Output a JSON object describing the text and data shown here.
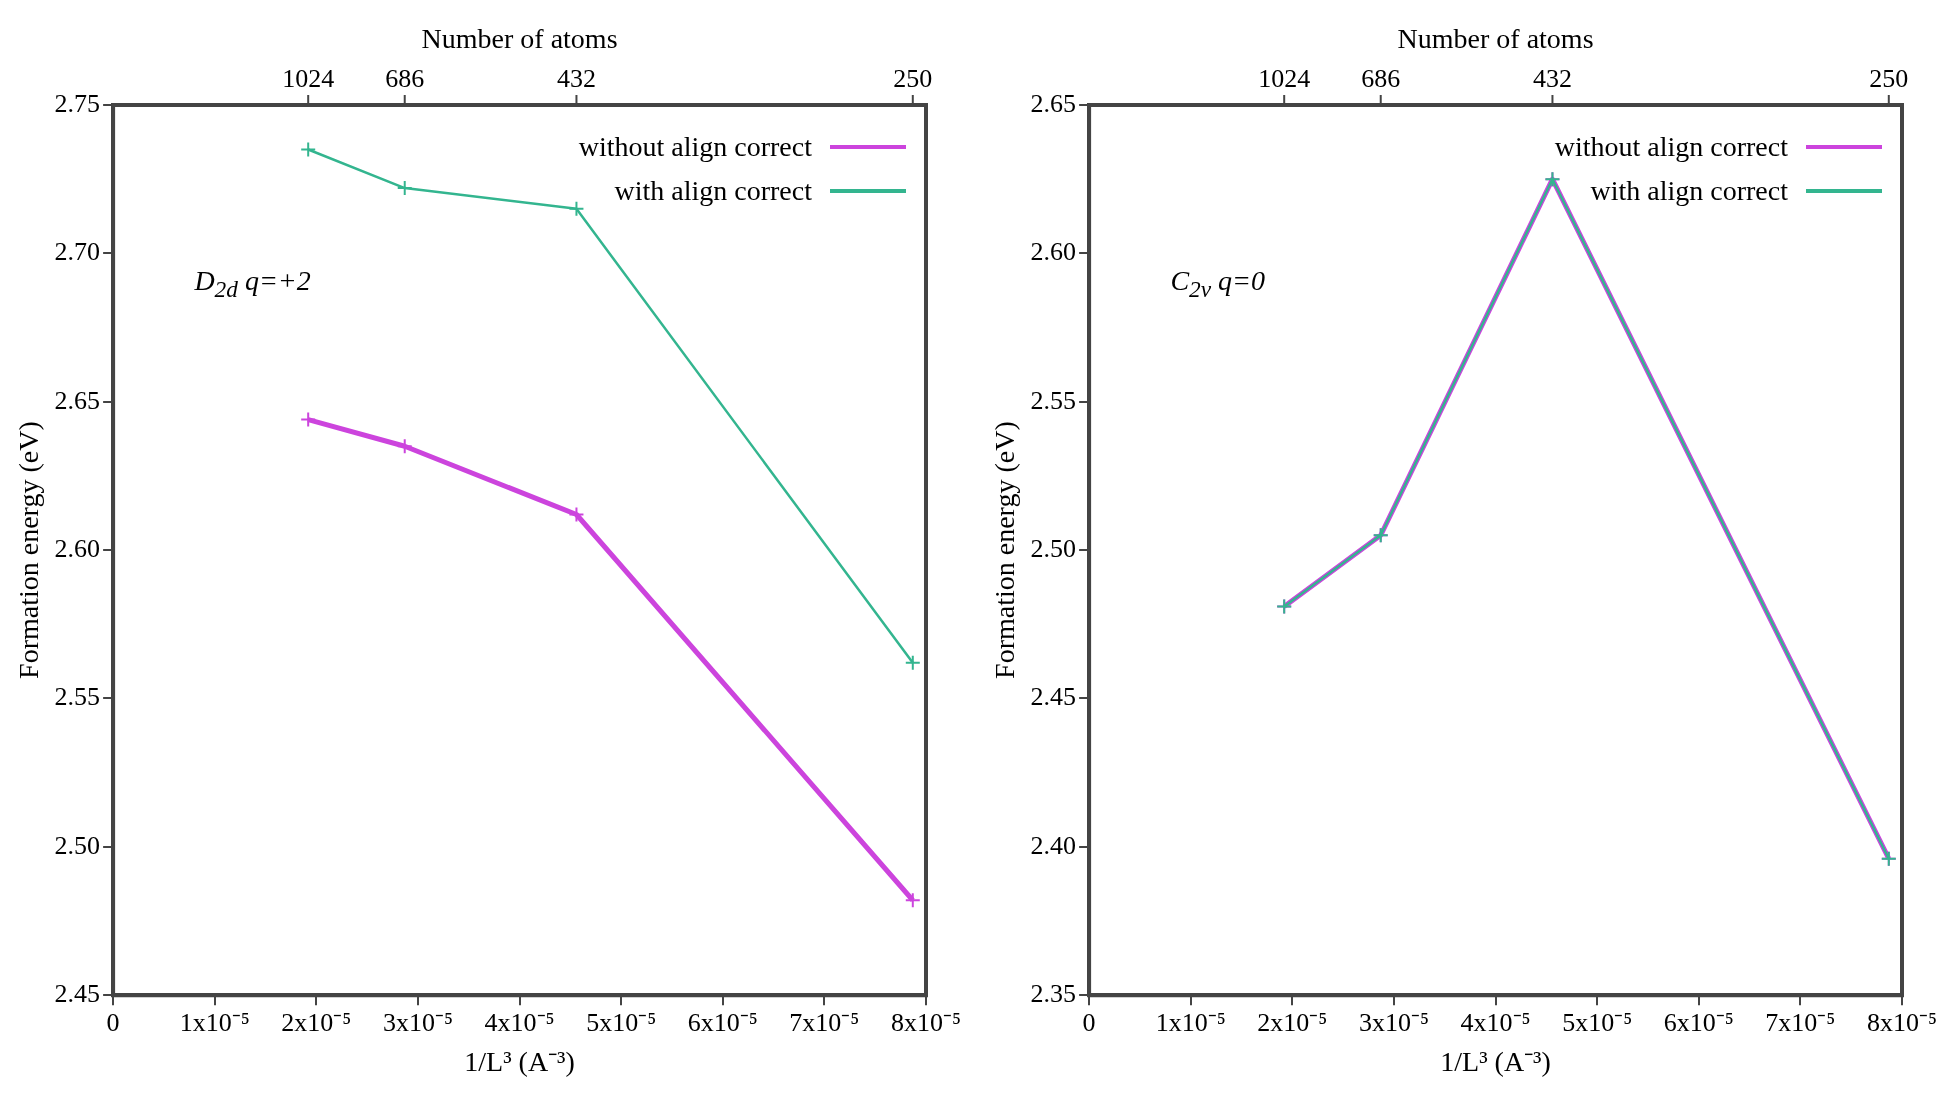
{
  "chart_data": [
    {
      "type": "line",
      "xlabel": "1/L³ (A⁻³)",
      "x2label": "Number of atoms",
      "ylabel": "Formation energy (eV)",
      "annotations": [
        "D$_{2d}$ q=+2",
        {
          "text": "1024",
          "x": 1.92e-05
        },
        {
          "text": "686",
          "x": 2.87e-05
        },
        {
          "text": "432",
          "x": 4.56e-05
        },
        {
          "text": "250",
          "x": 7.87e-05
        }
      ],
      "x": [
        1.92e-05,
        2.87e-05,
        4.56e-05,
        7.87e-05
      ],
      "series": [
        {
          "name": "without align correct",
          "color": "#cc44dd",
          "marker": "cross",
          "values": [
            2.644,
            2.635,
            2.612,
            2.482
          ]
        },
        {
          "name": "with align correct",
          "color": "#33b58f",
          "marker": "cross",
          "values": [
            2.735,
            2.722,
            2.715,
            2.562
          ]
        }
      ],
      "xlim": [
        0,
        8e-05
      ],
      "xticks": [
        0,
        {
          "value": 1e-05,
          "label": "1x10⁻⁵"
        },
        {
          "value": 2e-05,
          "label": "2x10⁻⁵"
        },
        {
          "value": 3e-05,
          "label": "3x10⁻⁵"
        },
        {
          "value": 4e-05,
          "label": "4x10⁻⁵"
        },
        {
          "value": 5e-05,
          "label": "5x10⁻⁵"
        },
        {
          "value": 6e-05,
          "label": "6x10⁻⁵"
        },
        {
          "value": 7e-05,
          "label": "7x10⁻⁵"
        },
        {
          "value": 8e-05,
          "label": "8x10⁻⁵"
        }
      ],
      "ylim": [
        2.45,
        2.75
      ],
      "yticks": [
        2.45,
        {
          "value": 2.5,
          "label": "2.50"
        },
        2.55,
        {
          "value": 2.6,
          "label": "2.60"
        },
        2.65,
        {
          "value": 2.7,
          "label": "2.70"
        },
        2.75
      ],
      "grid": false,
      "legend": "top right"
    },
    {
      "type": "line",
      "xlabel": "1/L³ (A⁻³)",
      "x2label": "Number of atoms",
      "ylabel": "Formation energy (eV)",
      "annotations": [
        "C$_{2v}$ q=0",
        {
          "text": "1024",
          "x": 1.92e-05
        },
        {
          "text": "686",
          "x": 2.87e-05
        },
        {
          "text": "432",
          "x": 4.56e-05
        },
        {
          "text": "250",
          "x": 7.87e-05
        }
      ],
      "x": [
        1.92e-05,
        2.87e-05,
        4.56e-05,
        7.87e-05
      ],
      "series": [
        {
          "name": "without align correct",
          "color": "#cc44dd",
          "marker": "cross",
          "values": [
            2.481,
            2.505,
            2.625,
            2.396
          ]
        },
        {
          "name": "with align correct",
          "color": "#33b58f",
          "marker": "cross",
          "values": [
            2.481,
            2.505,
            2.625,
            2.396
          ]
        }
      ],
      "xlim": [
        0,
        8e-05
      ],
      "xticks": [
        0,
        {
          "value": 1e-05,
          "label": "1x10⁻⁵"
        },
        {
          "value": 2e-05,
          "label": "2x10⁻⁵"
        },
        {
          "value": 3e-05,
          "label": "3x10⁻⁵"
        },
        {
          "value": 4e-05,
          "label": "4x10⁻⁵"
        },
        {
          "value": 5e-05,
          "label": "5x10⁻⁵"
        },
        {
          "value": 6e-05,
          "label": "6x10⁻⁵"
        },
        {
          "value": 7e-05,
          "label": "7x10⁻⁵"
        },
        {
          "value": 8e-05,
          "label": "8x10⁻⁵"
        }
      ],
      "ylim": [
        2.35,
        2.65
      ],
      "yticks": [
        2.35,
        {
          "value": 2.4,
          "label": "2.40"
        },
        2.45,
        {
          "value": 2.5,
          "label": "2.50"
        },
        2.55,
        {
          "value": 2.6,
          "label": "2.60"
        },
        2.65
      ],
      "grid": false,
      "legend": "top right"
    }
  ]
}
